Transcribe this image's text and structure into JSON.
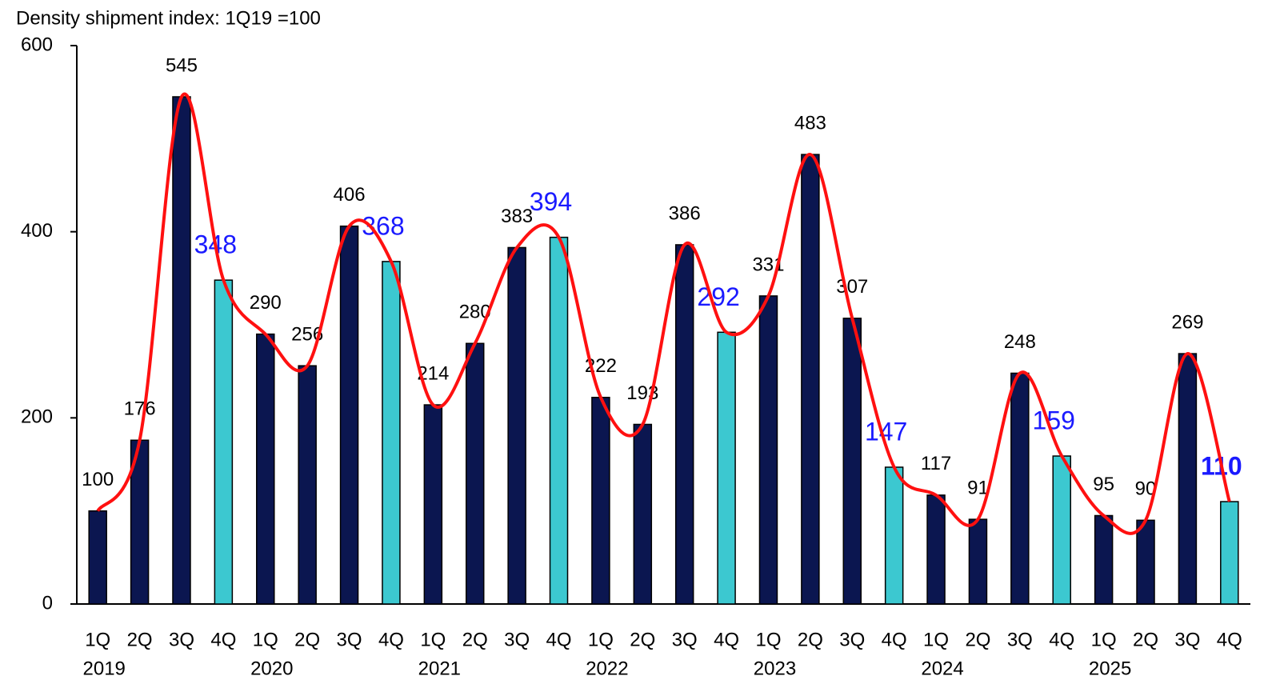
{
  "chart_data": {
    "type": "bar",
    "y_label": "Density shipment index: 1Q19 =100",
    "categories": [
      "1Q",
      "2Q",
      "3Q",
      "4Q",
      "1Q",
      "2Q",
      "3Q",
      "4Q",
      "1Q",
      "2Q",
      "3Q",
      "4Q",
      "1Q",
      "2Q",
      "3Q",
      "4Q",
      "1Q",
      "2Q",
      "3Q",
      "4Q",
      "1Q",
      "2Q",
      "3Q",
      "4Q",
      "1Q",
      "2Q",
      "3Q",
      "4Q"
    ],
    "groups": [
      "2019",
      "2020",
      "2021",
      "2022",
      "2023",
      "2024",
      "2025"
    ],
    "values": [
      100,
      176,
      545,
      348,
      290,
      256,
      406,
      368,
      214,
      280,
      383,
      394,
      222,
      193,
      386,
      292,
      331,
      483,
      307,
      147,
      117,
      91,
      248,
      159,
      95,
      90,
      269,
      110
    ],
    "colors": [
      "#0b1650",
      "#0b1650",
      "#0b1650",
      "#3cc8d0",
      "#0b1650",
      "#0b1650",
      "#0b1650",
      "#3cc8d0",
      "#0b1650",
      "#0b1650",
      "#0b1650",
      "#3cc8d0",
      "#0b1650",
      "#0b1650",
      "#0b1650",
      "#3cc8d0",
      "#0b1650",
      "#0b1650",
      "#0b1650",
      "#3cc8d0",
      "#0b1650",
      "#0b1650",
      "#0b1650",
      "#3cc8d0",
      "#0b1650",
      "#0b1650",
      "#0b1650",
      "#3cc8d0"
    ],
    "line_color": "#ff1010",
    "ylim": [
      0,
      600
    ],
    "yticks": [
      0,
      200,
      400,
      600
    ]
  }
}
